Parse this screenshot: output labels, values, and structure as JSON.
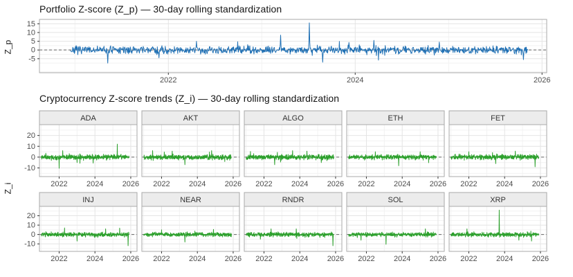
{
  "page": {
    "background": "#ffffff",
    "text_color": "#141414",
    "tick_label_color": "#4d4d4d",
    "grid_major_color": "#e4e4e4",
    "grid_minor_color": "#f2f2f2",
    "panel_border_color": "#aaaaaa",
    "strip_fill": "#ececec",
    "strip_border": "#a8a8a8",
    "zero_line_color": "#666666"
  },
  "chart_data": [
    {
      "type": "line",
      "title": "Portfolio Z-score (Z_p) — 30-day rolling standardization",
      "xlabel": "",
      "ylabel": "Z_p",
      "color": "#2171b5",
      "legend": "none",
      "grid": "on",
      "zero_line": "dashed",
      "x_ticks": [
        2022,
        2024,
        2026
      ],
      "x_minor": [
        2021,
        2023,
        2025
      ],
      "y_ticks": [
        15,
        10,
        5,
        0,
        -5
      ],
      "y_minor": [
        12.5,
        7.5,
        2.5,
        -2.5,
        -7.5,
        -12.5
      ],
      "xlim": [
        2020.62,
        2026.05
      ],
      "ylim": [
        -13,
        17.5
      ],
      "x_range_data": [
        2020.95,
        2025.85
      ],
      "points_per_series": 1100,
      "noise_sd": 1.1,
      "seed": 7,
      "spikes": [
        [
          2021.35,
          -7.5
        ],
        [
          2021.9,
          -4.5
        ],
        [
          2022.3,
          5.0
        ],
        [
          2023.2,
          8.5
        ],
        [
          2023.51,
          15.5
        ],
        [
          2023.65,
          -7.0
        ],
        [
          2024.2,
          5.5
        ],
        [
          2024.9,
          4.5
        ],
        [
          2025.8,
          -5.5
        ]
      ]
    },
    {
      "type": "line",
      "faceted": true,
      "title": "Cryptocurrency Z-score trends (Z_i) — 30-day rolling standardization",
      "xlabel": "",
      "ylabel": "Z_i",
      "color": "#2ca02c",
      "legend": "none",
      "grid": "on",
      "zero_line": "dashed",
      "x_ticks": [
        2022,
        2024,
        2026
      ],
      "x_minor": [
        2021,
        2023,
        2025
      ],
      "y_ticks": [
        20,
        10,
        0,
        -10
      ],
      "y_minor": [
        25,
        15,
        5,
        -5,
        -15
      ],
      "xlim": [
        2020.9,
        2026.35
      ],
      "ylim": [
        -18,
        30
      ],
      "x_range_data": [
        2021.0,
        2025.9
      ],
      "points_per_series": 520,
      "noise_sd": 1.1,
      "facets": [
        {
          "name": "ADA",
          "seed": 11,
          "spikes": [
            [
              2022.2,
              6
            ],
            [
              2023.0,
              -5
            ],
            [
              2023.9,
              -5.5
            ],
            [
              2025.25,
              12
            ]
          ]
        },
        {
          "name": "AKT",
          "seed": 12,
          "spikes": [
            [
              2021.5,
              6
            ],
            [
              2022.6,
              5.5
            ],
            [
              2023.3,
              -7
            ],
            [
              2024.8,
              6
            ]
          ]
        },
        {
          "name": "ALGO",
          "seed": 13,
          "spikes": [
            [
              2022.6,
              -7
            ],
            [
              2023.6,
              6
            ],
            [
              2024.4,
              5.5
            ],
            [
              2025.2,
              -5
            ]
          ]
        },
        {
          "name": "ETH",
          "seed": 14,
          "spikes": [
            [
              2022.5,
              5
            ],
            [
              2023.8,
              -8
            ],
            [
              2025.0,
              5
            ]
          ]
        },
        {
          "name": "FET",
          "seed": 15,
          "spikes": [
            [
              2022.0,
              5
            ],
            [
              2023.5,
              -6
            ],
            [
              2024.6,
              5.5
            ],
            [
              2025.7,
              -9
            ]
          ]
        },
        {
          "name": "INJ",
          "seed": 16,
          "spikes": [
            [
              2022.3,
              7
            ],
            [
              2023.0,
              -7
            ],
            [
              2024.6,
              6
            ],
            [
              2025.85,
              -12
            ]
          ]
        },
        {
          "name": "NEAR",
          "seed": 17,
          "spikes": [
            [
              2022.0,
              5
            ],
            [
              2023.3,
              -8
            ],
            [
              2024.9,
              5.5
            ]
          ]
        },
        {
          "name": "RNDR",
          "seed": 18,
          "spikes": [
            [
              2021.8,
              -5
            ],
            [
              2022.4,
              6
            ],
            [
              2023.8,
              6
            ],
            [
              2025.85,
              -12
            ]
          ]
        },
        {
          "name": "SOL",
          "seed": 19,
          "spikes": [
            [
              2021.7,
              -6
            ],
            [
              2023.1,
              -10.5
            ],
            [
              2025.3,
              6
            ]
          ]
        },
        {
          "name": "XRP",
          "seed": 20,
          "spikes": [
            [
              2021.9,
              6
            ],
            [
              2023.7,
              26
            ],
            [
              2024.8,
              -6
            ],
            [
              2025.5,
              -7
            ]
          ]
        }
      ]
    }
  ]
}
